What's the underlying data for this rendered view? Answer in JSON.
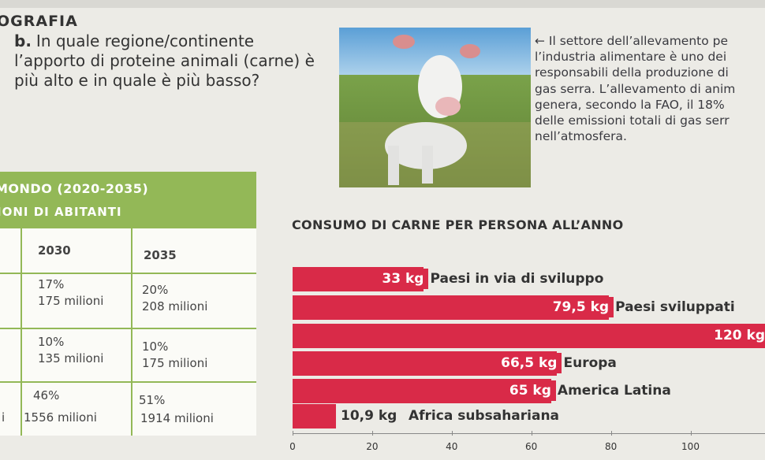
{
  "section_title": "OGRAFIA",
  "question": {
    "label": "b.",
    "text": "In quale regione/continente l’apporto di proteine animali (carne) è più alto e in quale è più basso?"
  },
  "caption_lines": [
    "← Il settore dell’allevamento pe",
    "l’industria alimentare è uno dei",
    "responsabili della produzione di",
    "gas serra. L’allevamento di anim",
    "genera, secondo la FAO, il 18%",
    "delle emissioni totali di gas serr",
    "nell’atmosfera."
  ],
  "table": {
    "title_line1": "MONDO (2020-2035)",
    "title_line2": "IONI DI ABITANTI",
    "col_headers": [
      "2030",
      "2035"
    ],
    "rows": [
      {
        "row_label": "",
        "c2030_pct": "17%",
        "c2030_abs": "175 milioni",
        "c2035_pct": "20%",
        "c2035_abs": "208 milioni"
      },
      {
        "row_label": "",
        "c2030_pct": "10%",
        "c2030_abs": "135 milioni",
        "c2035_pct": "10%",
        "c2035_abs": "175 milioni"
      },
      {
        "row_label": "i",
        "c2030_pct": "46%",
        "c2030_abs": "1556 milioni",
        "c2035_pct": "51%",
        "c2035_abs": "1914 milioni"
      }
    ]
  },
  "chart_data": {
    "type": "bar",
    "orientation": "horizontal",
    "title": "CONSUMO DI CARNE PER PERSONA ALL’ANNO",
    "categories": [
      "Paesi in via di sviluppo",
      "Paesi sviluppati",
      "",
      "Europa",
      "America Latina",
      "Africa subsahariana"
    ],
    "values": [
      33,
      79.5,
      120,
      66.5,
      65,
      10.9
    ],
    "value_labels": [
      "33 kg",
      "79,5 kg",
      "120 kg",
      "66,5 kg",
      "65 kg",
      "10,9 kg"
    ],
    "x_ticks": [
      "0",
      "20",
      "40",
      "60",
      "80",
      "100"
    ],
    "xlim": [
      0,
      115
    ],
    "bar_color": "#d92a48"
  }
}
